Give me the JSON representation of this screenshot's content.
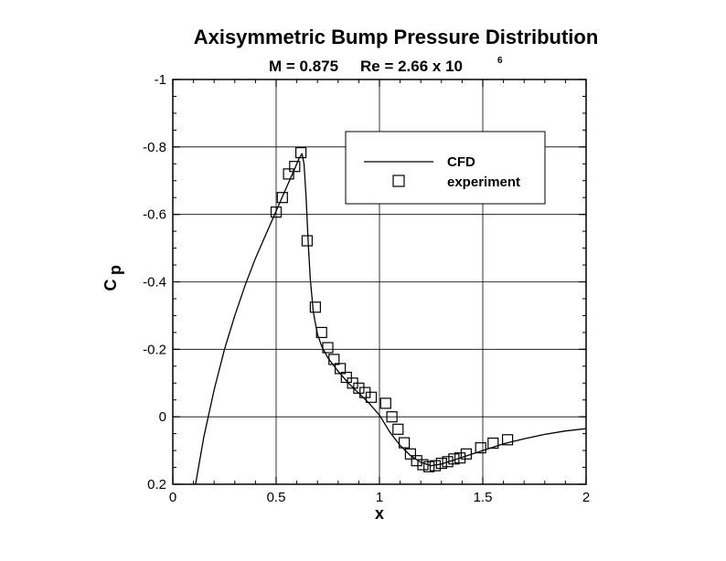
{
  "chart_data": {
    "type": "line",
    "title": "Axisymmetric Bump Pressure Distribution",
    "subtitle": {
      "mach": "M = 0.875",
      "reynolds_prefix": "Re = 2.66 x 10",
      "reynolds_exponent": "6"
    },
    "xlabel": "x",
    "ylabel": {
      "main": "C",
      "subscript": "p"
    },
    "xlim": [
      0,
      2
    ],
    "ylim": [
      0.2,
      -1
    ],
    "y_inverted": true,
    "grid": true,
    "x_ticks": [
      {
        "value": 0,
        "label": "0"
      },
      {
        "value": 0.5,
        "label": "0.5"
      },
      {
        "value": 1,
        "label": "1"
      },
      {
        "value": 1.5,
        "label": "1.5"
      },
      {
        "value": 2,
        "label": "2"
      }
    ],
    "y_ticks": [
      {
        "value": -1,
        "label": "-1"
      },
      {
        "value": -0.8,
        "label": "-0.8"
      },
      {
        "value": -0.6,
        "label": "-0.6"
      },
      {
        "value": -0.4,
        "label": "-0.4"
      },
      {
        "value": -0.2,
        "label": "-0.2"
      },
      {
        "value": 0,
        "label": "0"
      },
      {
        "value": 0.2,
        "label": "0.2"
      }
    ],
    "legend_position": "top-right",
    "series": [
      {
        "name": "CFD",
        "style": "solid-line",
        "color": "#000000",
        "points": [
          [
            0.11,
            0.2
          ],
          [
            0.15,
            0.06
          ],
          [
            0.2,
            -0.08
          ],
          [
            0.25,
            -0.2
          ],
          [
            0.3,
            -0.3
          ],
          [
            0.35,
            -0.39
          ],
          [
            0.4,
            -0.47
          ],
          [
            0.45,
            -0.54
          ],
          [
            0.5,
            -0.61
          ],
          [
            0.55,
            -0.68
          ],
          [
            0.59,
            -0.735
          ],
          [
            0.61,
            -0.765
          ],
          [
            0.625,
            -0.78
          ],
          [
            0.635,
            -0.75
          ],
          [
            0.645,
            -0.65
          ],
          [
            0.655,
            -0.52
          ],
          [
            0.665,
            -0.41
          ],
          [
            0.68,
            -0.31
          ],
          [
            0.7,
            -0.245
          ],
          [
            0.72,
            -0.21
          ],
          [
            0.75,
            -0.175
          ],
          [
            0.8,
            -0.135
          ],
          [
            0.85,
            -0.1
          ],
          [
            0.9,
            -0.07
          ],
          [
            0.95,
            -0.04
          ],
          [
            1.0,
            -0.005
          ],
          [
            1.05,
            0.045
          ],
          [
            1.1,
            0.085
          ],
          [
            1.15,
            0.115
          ],
          [
            1.2,
            0.135
          ],
          [
            1.25,
            0.145
          ],
          [
            1.3,
            0.14
          ],
          [
            1.35,
            0.13
          ],
          [
            1.4,
            0.12
          ],
          [
            1.5,
            0.1
          ],
          [
            1.6,
            0.08
          ],
          [
            1.7,
            0.065
          ],
          [
            1.8,
            0.052
          ],
          [
            1.9,
            0.042
          ],
          [
            2.0,
            0.035
          ]
        ]
      },
      {
        "name": "experiment",
        "style": "open-square-markers",
        "color": "#000000",
        "points": [
          [
            0.5,
            -0.607
          ],
          [
            0.53,
            -0.65
          ],
          [
            0.56,
            -0.72
          ],
          [
            0.59,
            -0.742
          ],
          [
            0.62,
            -0.783
          ],
          [
            0.65,
            -0.522
          ],
          [
            0.69,
            -0.325
          ],
          [
            0.72,
            -0.25
          ],
          [
            0.75,
            -0.205
          ],
          [
            0.78,
            -0.17
          ],
          [
            0.81,
            -0.143
          ],
          [
            0.84,
            -0.117
          ],
          [
            0.87,
            -0.1
          ],
          [
            0.9,
            -0.085
          ],
          [
            0.93,
            -0.072
          ],
          [
            0.96,
            -0.058
          ],
          [
            1.03,
            -0.04
          ],
          [
            1.06,
            0.0
          ],
          [
            1.09,
            0.037
          ],
          [
            1.12,
            0.077
          ],
          [
            1.15,
            0.11
          ],
          [
            1.18,
            0.13
          ],
          [
            1.21,
            0.142
          ],
          [
            1.24,
            0.148
          ],
          [
            1.27,
            0.145
          ],
          [
            1.3,
            0.138
          ],
          [
            1.33,
            0.133
          ],
          [
            1.36,
            0.125
          ],
          [
            1.39,
            0.122
          ],
          [
            1.42,
            0.11
          ],
          [
            1.49,
            0.092
          ],
          [
            1.55,
            0.078
          ],
          [
            1.62,
            0.068
          ]
        ]
      }
    ]
  }
}
